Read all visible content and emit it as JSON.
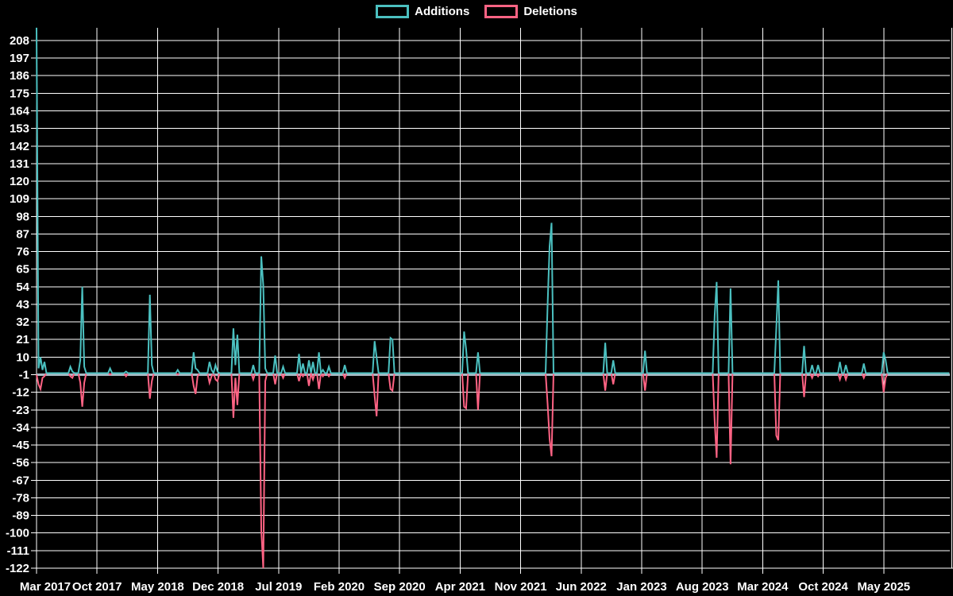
{
  "legend": {
    "additions_label": "Additions",
    "deletions_label": "Deletions"
  },
  "colors": {
    "background": "#000000",
    "grid": "#ffffff",
    "text": "#ffffff",
    "additions": "#4bc0c0",
    "deletions": "#ff6384",
    "zero_line": "#a8bcc6"
  },
  "chart_data": {
    "type": "line",
    "title": "",
    "legend_position": "top",
    "grid": true,
    "x_tick_labels": [
      "Mar 2017",
      "Oct 2017",
      "May 2018",
      "Dec 2018",
      "Jul 2019",
      "Feb 2020",
      "Sep 2020",
      "Apr 2021",
      "Nov 2021",
      "Jun 2022",
      "Jan 2023",
      "Aug 2023",
      "Mar 2024",
      "Oct 2024",
      "May 2025"
    ],
    "x_tick_interval_months": 7,
    "x_unit": "week",
    "weeks_total": 459,
    "y_ticks": [
      208,
      197,
      186,
      175,
      164,
      153,
      142,
      131,
      120,
      109,
      98,
      87,
      76,
      65,
      54,
      43,
      32,
      21,
      10,
      -1,
      -12,
      -23,
      -34,
      -45,
      -56,
      -67,
      -78,
      -89,
      -100,
      -111,
      -122
    ],
    "y_min": -122,
    "y_max": 216,
    "y_tick_step": 11,
    "axis_line_value": -1,
    "series": [
      {
        "name": "Additions",
        "color": "#4bc0c0",
        "baseline": 0,
        "events": [
          [
            0,
            216
          ],
          [
            1,
            3
          ],
          [
            2,
            10
          ],
          [
            3,
            2
          ],
          [
            4,
            7
          ],
          [
            17,
            4
          ],
          [
            18,
            1
          ],
          [
            22,
            8
          ],
          [
            23,
            54
          ],
          [
            24,
            4
          ],
          [
            37,
            3
          ],
          [
            45,
            1
          ],
          [
            57,
            49
          ],
          [
            58,
            5
          ],
          [
            71,
            2
          ],
          [
            79,
            13
          ],
          [
            80,
            3
          ],
          [
            81,
            2
          ],
          [
            87,
            7
          ],
          [
            88,
            2
          ],
          [
            90,
            5
          ],
          [
            91,
            1
          ],
          [
            99,
            28
          ],
          [
            100,
            5
          ],
          [
            101,
            24
          ],
          [
            109,
            5
          ],
          [
            113,
            73
          ],
          [
            114,
            55
          ],
          [
            115,
            3
          ],
          [
            120,
            11
          ],
          [
            124,
            4
          ],
          [
            132,
            12
          ],
          [
            134,
            6
          ],
          [
            137,
            8
          ],
          [
            139,
            7
          ],
          [
            142,
            13
          ],
          [
            144,
            2
          ],
          [
            147,
            4
          ],
          [
            155,
            5
          ],
          [
            170,
            20
          ],
          [
            171,
            10
          ],
          [
            178,
            22
          ],
          [
            179,
            21
          ],
          [
            215,
            26
          ],
          [
            216,
            15
          ],
          [
            222,
            13
          ],
          [
            257,
            42
          ],
          [
            258,
            79
          ],
          [
            259,
            94
          ],
          [
            286,
            19
          ],
          [
            290,
            8
          ],
          [
            306,
            14
          ],
          [
            341,
            36
          ],
          [
            342,
            57
          ],
          [
            349,
            53
          ],
          [
            372,
            28
          ],
          [
            373,
            58
          ],
          [
            386,
            17
          ],
          [
            390,
            5
          ],
          [
            393,
            5
          ],
          [
            404,
            7
          ],
          [
            407,
            5
          ],
          [
            416,
            6
          ],
          [
            426,
            13
          ],
          [
            427,
            8
          ]
        ]
      },
      {
        "name": "Deletions",
        "color": "#ff6384",
        "baseline": 0,
        "events": [
          [
            0,
            -1
          ],
          [
            1,
            -7
          ],
          [
            2,
            -10
          ],
          [
            3,
            -3
          ],
          [
            4,
            -2
          ],
          [
            17,
            -2
          ],
          [
            18,
            -3
          ],
          [
            22,
            -6
          ],
          [
            23,
            -21
          ],
          [
            24,
            -6
          ],
          [
            37,
            -1
          ],
          [
            45,
            -2
          ],
          [
            57,
            -16
          ],
          [
            58,
            -5
          ],
          [
            71,
            -1
          ],
          [
            79,
            -8
          ],
          [
            80,
            -13
          ],
          [
            81,
            -2
          ],
          [
            87,
            -6
          ],
          [
            88,
            -2
          ],
          [
            90,
            -4
          ],
          [
            91,
            -5
          ],
          [
            99,
            -28
          ],
          [
            100,
            -3
          ],
          [
            101,
            -20
          ],
          [
            109,
            -4
          ],
          [
            113,
            -98
          ],
          [
            114,
            -122
          ],
          [
            115,
            -5
          ],
          [
            120,
            -7
          ],
          [
            124,
            -3
          ],
          [
            132,
            -5
          ],
          [
            134,
            -2
          ],
          [
            137,
            -8
          ],
          [
            139,
            -4
          ],
          [
            142,
            -10
          ],
          [
            144,
            -2
          ],
          [
            147,
            -2
          ],
          [
            155,
            -3
          ],
          [
            170,
            -14
          ],
          [
            171,
            -27
          ],
          [
            178,
            -10
          ],
          [
            179,
            -11
          ],
          [
            215,
            -21
          ],
          [
            216,
            -22
          ],
          [
            222,
            -23
          ],
          [
            257,
            -19
          ],
          [
            258,
            -41
          ],
          [
            259,
            -52
          ],
          [
            286,
            -11
          ],
          [
            290,
            -7
          ],
          [
            306,
            -11
          ],
          [
            341,
            -30
          ],
          [
            342,
            -53
          ],
          [
            349,
            -57
          ],
          [
            372,
            -39
          ],
          [
            373,
            -42
          ],
          [
            386,
            -15
          ],
          [
            390,
            -3
          ],
          [
            393,
            -2
          ],
          [
            404,
            -4
          ],
          [
            407,
            -4
          ],
          [
            416,
            -3
          ],
          [
            426,
            -12
          ],
          [
            427,
            -3
          ]
        ]
      }
    ]
  }
}
